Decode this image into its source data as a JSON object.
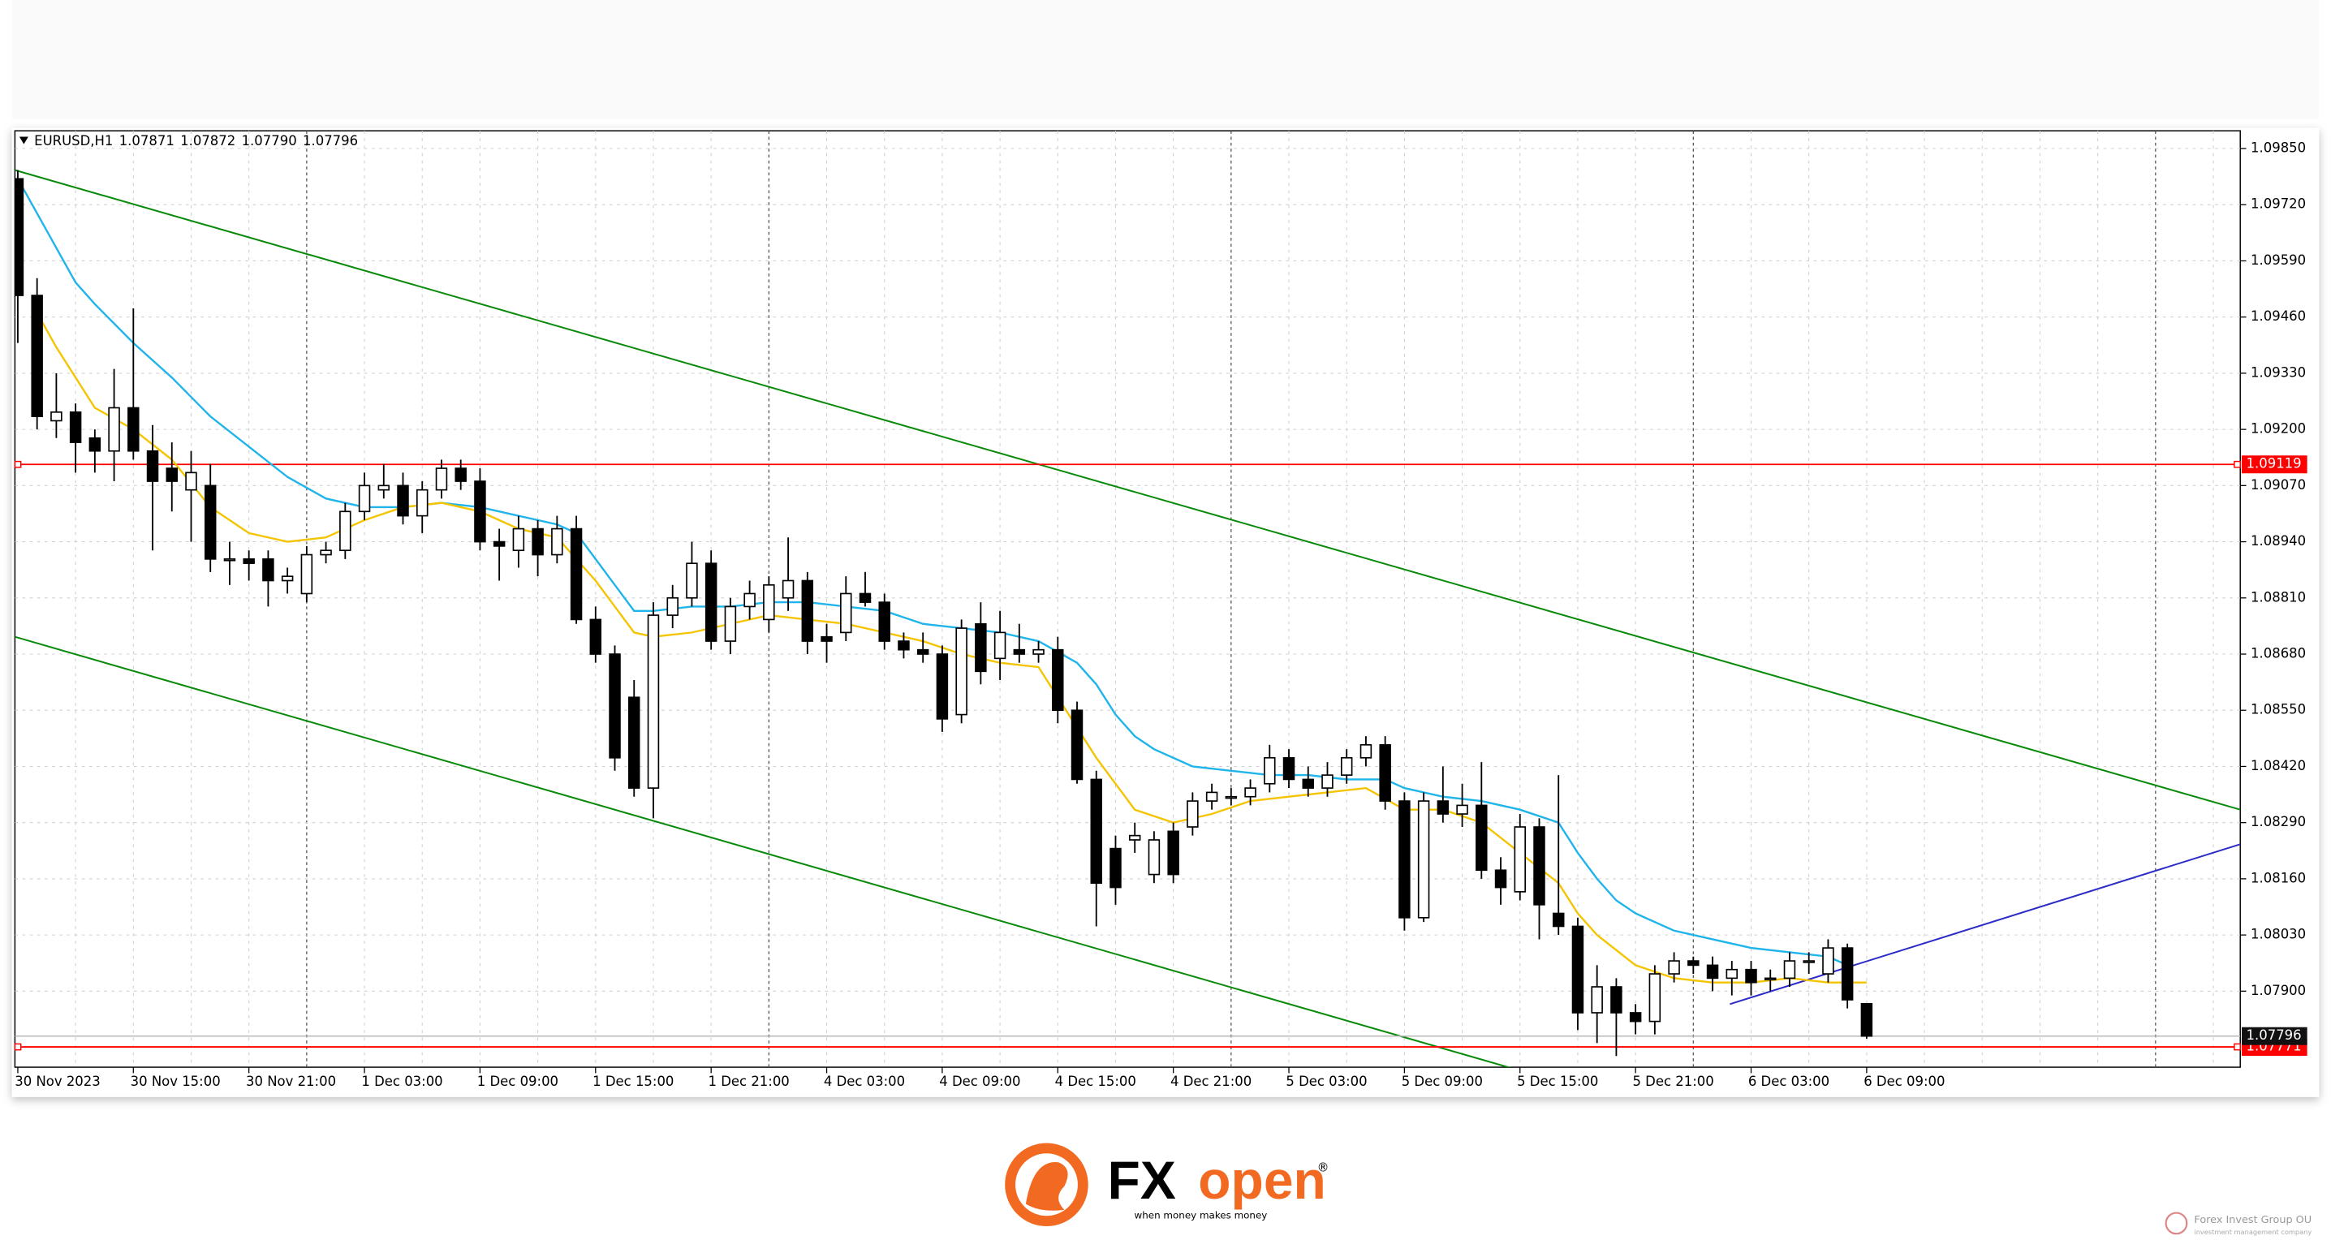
{
  "chart_data": {
    "type": "candlestick",
    "symbol": "EURUSD,H1",
    "ohlc_labels": [
      "1.07871",
      "1.07872",
      "1.07790",
      "1.07796"
    ],
    "categories": [
      "30 Nov 2023",
      null,
      null,
      null,
      null,
      null,
      "30 Nov 15:00",
      null,
      null,
      null,
      null,
      null,
      "30 Nov 21:00",
      null,
      null,
      null,
      null,
      null,
      "1 Dec 03:00",
      null,
      null,
      null,
      null,
      null,
      "1 Dec 09:00",
      null,
      null,
      null,
      null,
      null,
      "1 Dec 15:00",
      null,
      null,
      null,
      null,
      null,
      "1 Dec 21:00",
      null,
      null,
      null,
      null,
      null,
      "4 Dec 03:00",
      null,
      null,
      null,
      null,
      null,
      "4 Dec 09:00",
      null,
      null,
      null,
      null,
      null,
      "4 Dec 15:00",
      null,
      null,
      null,
      null,
      null,
      "4 Dec 21:00",
      null,
      null,
      null,
      null,
      null,
      "5 Dec 03:00",
      null,
      null,
      null,
      null,
      null,
      "5 Dec 09:00",
      null,
      null,
      null,
      null,
      null,
      "5 Dec 15:00",
      null,
      null,
      null,
      null,
      null,
      "5 Dec 21:00",
      null,
      null,
      null,
      null,
      null,
      "6 Dec 03:00",
      null,
      null,
      null,
      null,
      null,
      "6 Dec 09:00"
    ],
    "open": [
      1.0978,
      1.0951,
      1.0922,
      1.0924,
      1.0918,
      1.0915,
      1.0925,
      1.0915,
      1.0911,
      1.0906,
      1.0907,
      1.089,
      1.089,
      1.089,
      1.0885,
      1.0882,
      1.0891,
      1.0892,
      1.0901,
      1.0906,
      1.0907,
      1.09,
      1.0906,
      1.0911,
      1.0908,
      1.0894,
      1.0892,
      1.0897,
      1.0891,
      1.0897,
      1.0876,
      1.0868,
      1.0858,
      1.0837,
      1.0877,
      1.0881,
      1.0889,
      1.0871,
      1.0879,
      1.0876,
      1.0881,
      1.0885,
      1.0872,
      1.0873,
      1.0882,
      1.088,
      1.0871,
      1.0869,
      1.0868,
      1.0854,
      1.0875,
      1.0867,
      1.0869,
      1.0868,
      1.0869,
      1.0855,
      1.0839,
      1.0823,
      1.0825,
      1.0817,
      1.0827,
      1.0828,
      1.0834,
      1.0835,
      1.0835,
      1.0838,
      1.0844,
      1.0839,
      1.0837,
      1.084,
      1.0844,
      1.0847,
      1.0834,
      1.0807,
      1.0834,
      1.0831,
      1.0833,
      1.0818,
      1.0813,
      1.0828,
      1.0808,
      1.0805,
      1.0785,
      1.0791,
      1.0785,
      1.0783,
      1.0794,
      1.0797,
      1.0796,
      1.0793,
      1.0795,
      1.0793,
      1.0793,
      1.0797,
      1.0794,
      1.08,
      1.07871
    ],
    "high": [
      1.098,
      1.0955,
      1.0933,
      1.0926,
      1.092,
      1.0934,
      1.0948,
      1.0921,
      1.0917,
      1.0915,
      1.0912,
      1.0894,
      1.0892,
      1.0892,
      1.0888,
      1.0893,
      1.0894,
      1.0903,
      1.091,
      1.0912,
      1.091,
      1.0908,
      1.0913,
      1.0913,
      1.0911,
      1.0897,
      1.09,
      1.0899,
      1.09,
      1.09,
      1.0879,
      1.087,
      1.0862,
      1.088,
      1.0884,
      1.0894,
      1.0892,
      1.0881,
      1.0885,
      1.0886,
      1.0895,
      1.0887,
      1.0875,
      1.0886,
      1.0887,
      1.0882,
      1.0873,
      1.0873,
      1.087,
      1.0876,
      1.088,
      1.0878,
      1.0875,
      1.0871,
      1.0872,
      1.0857,
      1.0841,
      1.0826,
      1.0829,
      1.0827,
      1.0829,
      1.0836,
      1.0838,
      1.0837,
      1.0839,
      1.0847,
      1.0846,
      1.0842,
      1.0843,
      1.0846,
      1.0849,
      1.0849,
      1.0836,
      1.0836,
      1.0842,
      1.0838,
      1.0843,
      1.0821,
      1.0831,
      1.083,
      1.084,
      1.0807,
      1.0796,
      1.0793,
      1.0787,
      1.0796,
      1.0799,
      1.0798,
      1.0798,
      1.0797,
      1.0797,
      1.0795,
      1.0799,
      1.0799,
      1.0802,
      1.0801,
      1.07872
    ],
    "low": [
      1.094,
      1.092,
      1.0918,
      1.091,
      1.091,
      1.0908,
      1.0913,
      1.0892,
      1.0901,
      1.0894,
      1.0887,
      1.0884,
      1.0885,
      1.0879,
      1.0882,
      1.088,
      1.0889,
      1.089,
      1.0899,
      1.0904,
      1.0898,
      1.0896,
      1.0904,
      1.0906,
      1.0892,
      1.0885,
      1.0888,
      1.0886,
      1.0889,
      1.0875,
      1.0866,
      1.0841,
      1.0835,
      1.083,
      1.0874,
      1.0879,
      1.0869,
      1.0868,
      1.0876,
      1.0873,
      1.0878,
      1.0868,
      1.0866,
      1.0871,
      1.0879,
      1.0869,
      1.0867,
      1.0866,
      1.085,
      1.0852,
      1.0861,
      1.0862,
      1.0866,
      1.0866,
      1.0852,
      1.0838,
      1.0805,
      1.081,
      1.0822,
      1.0815,
      1.0815,
      1.0826,
      1.0832,
      1.0833,
      1.0833,
      1.0836,
      1.0837,
      1.0835,
      1.0835,
      1.0838,
      1.0842,
      1.0832,
      1.0804,
      1.0806,
      1.0829,
      1.0828,
      1.0816,
      1.081,
      1.0811,
      1.0802,
      1.0803,
      1.0781,
      1.0778,
      1.0775,
      1.078,
      1.078,
      1.0792,
      1.0794,
      1.079,
      1.0789,
      1.0789,
      1.079,
      1.0791,
      1.0794,
      1.0792,
      1.0786,
      1.0779
    ],
    "close": [
      1.0951,
      1.0923,
      1.0924,
      1.0917,
      1.0915,
      1.0925,
      1.0915,
      1.0908,
      1.0908,
      1.091,
      1.089,
      1.089,
      1.0889,
      1.0885,
      1.0886,
      1.0891,
      1.0892,
      1.0901,
      1.0907,
      1.0907,
      1.09,
      1.0906,
      1.0911,
      1.0908,
      1.0894,
      1.0893,
      1.0897,
      1.0891,
      1.0897,
      1.0876,
      1.0868,
      1.0844,
      1.0837,
      1.0877,
      1.0881,
      1.0889,
      1.0871,
      1.0879,
      1.0882,
      1.0884,
      1.0885,
      1.0871,
      1.0871,
      1.0882,
      1.088,
      1.0871,
      1.0869,
      1.0868,
      1.0853,
      1.0874,
      1.0864,
      1.0873,
      1.0868,
      1.0869,
      1.0855,
      1.0839,
      1.0815,
      1.0814,
      1.0826,
      1.0825,
      1.0817,
      1.0834,
      1.0836,
      1.0835,
      1.0837,
      1.0844,
      1.0839,
      1.0837,
      1.084,
      1.0844,
      1.0847,
      1.0834,
      1.0807,
      1.0834,
      1.0831,
      1.0833,
      1.0818,
      1.0814,
      1.0828,
      1.081,
      1.0805,
      1.0785,
      1.0791,
      1.0785,
      1.0783,
      1.0794,
      1.0797,
      1.0796,
      1.0793,
      1.0795,
      1.0792,
      1.0793,
      1.0797,
      1.0797,
      1.08,
      1.0788,
      1.07796
    ],
    "series": [
      {
        "color": "#1fb4ea",
        "x": [
          0,
          3,
          4,
          6,
          8,
          10,
          12,
          14,
          16,
          18,
          20,
          22,
          24,
          26,
          28,
          29,
          30,
          31,
          32,
          33,
          35,
          37,
          39,
          41,
          43,
          45,
          47,
          49,
          51,
          53,
          55,
          56,
          57,
          58,
          59,
          61,
          63,
          65,
          67,
          69,
          71,
          72,
          74,
          76,
          78,
          80,
          81,
          82,
          83,
          84,
          86,
          88,
          90,
          92,
          94,
          95
        ],
        "values": [
          1.0978,
          1.0954,
          1.0949,
          1.094,
          1.0932,
          1.0923,
          1.0916,
          1.0909,
          1.0904,
          1.0902,
          1.0902,
          1.0903,
          1.0902,
          1.09,
          1.0898,
          1.0896,
          1.089,
          1.0884,
          1.0878,
          1.0878,
          1.0879,
          1.0879,
          1.088,
          1.088,
          1.0879,
          1.0878,
          1.0875,
          1.0874,
          1.0873,
          1.0871,
          1.0866,
          1.0861,
          1.0854,
          1.0849,
          1.0846,
          1.0842,
          1.0841,
          1.084,
          1.084,
          1.0839,
          1.0839,
          1.0837,
          1.0835,
          1.0834,
          1.0832,
          1.0829,
          1.0822,
          1.0816,
          1.0811,
          1.0808,
          1.0804,
          1.0802,
          1.08,
          1.0799,
          1.0798,
          1.0796
        ]
      },
      {
        "color": "#f5c400",
        "x": [
          1,
          2,
          4,
          6,
          8,
          10,
          12,
          14,
          16,
          18,
          20,
          22,
          24,
          26,
          28,
          30,
          32,
          33,
          35,
          37,
          39,
          41,
          43,
          45,
          47,
          49,
          51,
          53,
          55,
          56,
          58,
          60,
          62,
          64,
          66,
          68,
          70,
          72,
          74,
          76,
          78,
          80,
          81,
          82,
          84,
          86,
          88,
          90,
          92,
          94,
          96
        ],
        "values": [
          1.0947,
          1.0939,
          1.0925,
          1.092,
          1.0913,
          1.0902,
          1.0896,
          1.0894,
          1.0895,
          1.0899,
          1.0902,
          1.0903,
          1.0901,
          1.0897,
          1.0895,
          1.0885,
          1.0873,
          1.0872,
          1.0873,
          1.0875,
          1.0877,
          1.0876,
          1.0875,
          1.0873,
          1.0871,
          1.0868,
          1.0866,
          1.0865,
          1.0851,
          1.0844,
          1.0832,
          1.0829,
          1.0831,
          1.0834,
          1.0835,
          1.0836,
          1.0837,
          1.0832,
          1.0832,
          1.0829,
          1.0822,
          1.0815,
          1.0808,
          1.0803,
          1.0796,
          1.0793,
          1.0792,
          1.0792,
          1.0793,
          1.0792,
          1.0792
        ]
      }
    ],
    "trendlines": [
      {
        "color": "#0a8a0a",
        "points": [
          [
            -0.15,
            1.098
          ],
          [
            115.4,
            1.0832
          ]
        ]
      },
      {
        "color": "#0a8a0a",
        "points": [
          [
            -0.15,
            1.0872
          ],
          [
            77.7,
            1.0772
          ]
        ]
      },
      {
        "color": "#2b2bc8",
        "points": [
          [
            88.9,
            1.0787
          ],
          [
            115.4,
            1.0824
          ]
        ]
      }
    ],
    "hlines": [
      {
        "value": 1.09119,
        "color": "#ff0000"
      },
      {
        "value": 1.07771,
        "color": "#ff0000"
      }
    ],
    "xlim": [
      -0.15,
      115.4
    ],
    "ylim": [
      1.07724,
      1.09891
    ],
    "yticks": [
      {
        "value": 1.0985,
        "label": "1.09850"
      },
      {
        "value": 1.0972,
        "label": "1.09720"
      },
      {
        "value": 1.0959,
        "label": "1.09590"
      },
      {
        "value": 1.0946,
        "label": "1.09460"
      },
      {
        "value": 1.0933,
        "label": "1.09330"
      },
      {
        "value": 1.092,
        "label": "1.09200"
      },
      {
        "value": 1.0907,
        "label": "1.09070"
      },
      {
        "value": 1.0894,
        "label": "1.08940"
      },
      {
        "value": 1.0881,
        "label": "1.08810"
      },
      {
        "value": 1.0868,
        "label": "1.08680"
      },
      {
        "value": 1.0855,
        "label": "1.08550"
      },
      {
        "value": 1.0842,
        "label": "1.08420"
      },
      {
        "value": 1.0829,
        "label": "1.08290"
      },
      {
        "value": 1.0816,
        "label": "1.08160"
      },
      {
        "value": 1.0803,
        "label": "1.08030"
      },
      {
        "value": 1.079,
        "label": "1.07900"
      }
    ],
    "grid": true
  },
  "branding": {
    "logo": [
      "FX",
      "open"
    ],
    "mark": "®",
    "tagline": "when money makes money",
    "footer": "Forex Invest Group OU",
    "footer_sub": "investment management company"
  }
}
